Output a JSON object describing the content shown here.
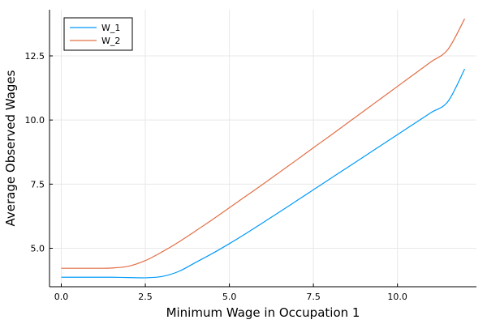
{
  "chart_data": {
    "type": "line",
    "title": "",
    "xlabel": "Minimum Wage in Occupation 1",
    "ylabel": "Average Observed Wages",
    "xlim": [
      -0.35,
      12.35
    ],
    "ylim": [
      3.5,
      14.3
    ],
    "xticks": [
      0.0,
      2.5,
      5.0,
      7.5,
      10.0
    ],
    "xtick_labels": [
      "0.0",
      "2.5",
      "5.0",
      "7.5",
      "10.0"
    ],
    "yticks": [
      5.0,
      7.5,
      10.0,
      12.5
    ],
    "ytick_labels": [
      "5.0",
      "7.5",
      "10.0",
      "12.5"
    ],
    "grid": true,
    "legend": "top-left",
    "series": [
      {
        "name": "W_1",
        "color": "#009AFA",
        "x": [
          0.0,
          0.5,
          1.0,
          1.5,
          2.0,
          2.5,
          3.0,
          3.5,
          4.0,
          4.5,
          5.0,
          5.5,
          6.0,
          6.5,
          7.0,
          7.5,
          8.0,
          8.5,
          9.0,
          9.5,
          10.0,
          10.5,
          11.0,
          11.5,
          12.0
        ],
        "y": [
          3.87,
          3.87,
          3.87,
          3.87,
          3.86,
          3.85,
          3.9,
          4.1,
          4.45,
          4.8,
          5.18,
          5.58,
          6.0,
          6.42,
          6.85,
          7.28,
          7.71,
          8.14,
          8.57,
          9.0,
          9.43,
          9.86,
          10.29,
          10.72,
          11.99
        ]
      },
      {
        "name": "W_2",
        "color": "#E26F46",
        "x": [
          0.0,
          0.5,
          1.0,
          1.5,
          2.0,
          2.5,
          3.0,
          3.5,
          4.0,
          4.5,
          5.0,
          5.5,
          6.0,
          6.5,
          7.0,
          7.5,
          8.0,
          8.5,
          9.0,
          9.5,
          10.0,
          10.5,
          11.0,
          11.5,
          12.0
        ],
        "y": [
          4.22,
          4.22,
          4.22,
          4.23,
          4.3,
          4.52,
          4.86,
          5.25,
          5.68,
          6.12,
          6.58,
          7.04,
          7.5,
          7.97,
          8.44,
          8.92,
          9.39,
          9.87,
          10.35,
          10.83,
          11.31,
          11.79,
          12.27,
          12.75,
          13.95
        ]
      }
    ]
  }
}
